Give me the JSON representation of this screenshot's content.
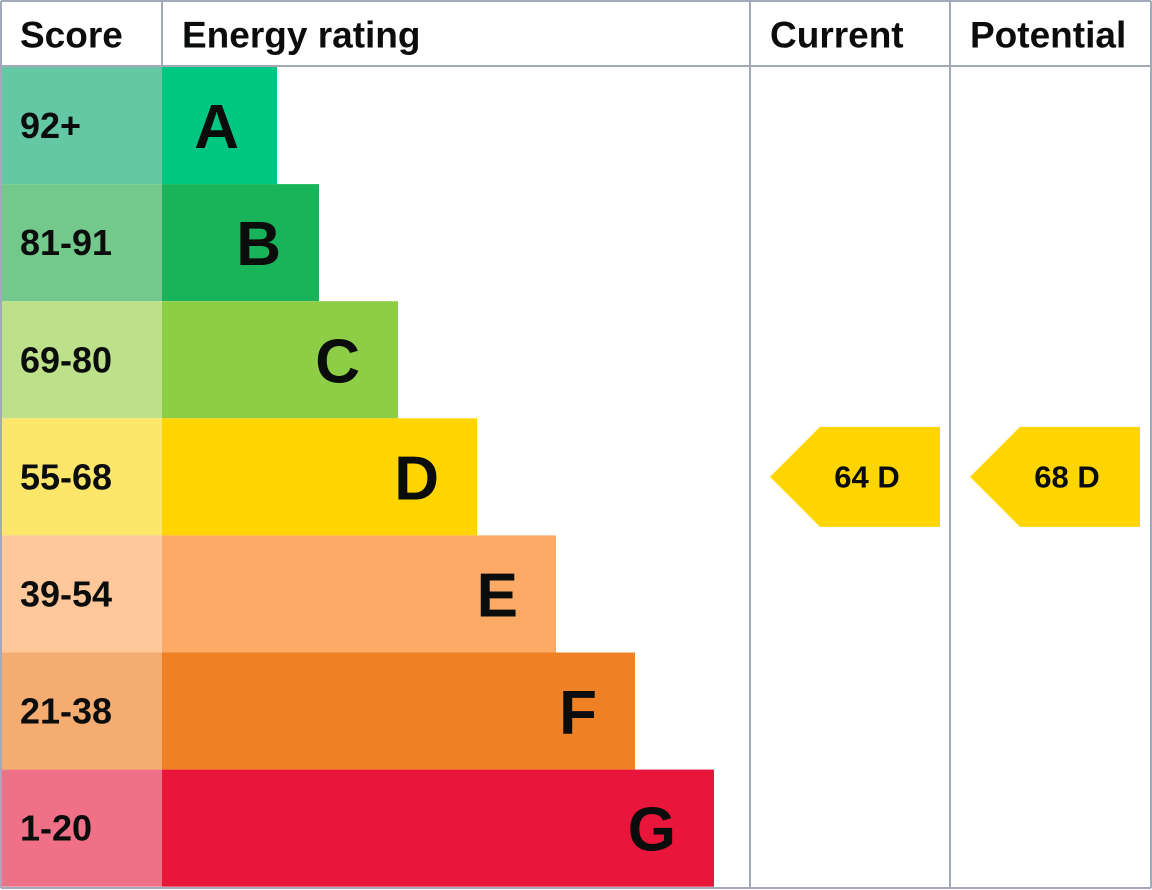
{
  "header": {
    "score": "Score",
    "energy_rating": "Energy rating",
    "current": "Current",
    "potential": "Potential"
  },
  "rows": [
    {
      "score": "92+",
      "rating": "A",
      "color": "#00c781",
      "score_color": "#64c8a5"
    },
    {
      "score": "81-91",
      "rating": "B",
      "color": "#19b459",
      "score_color": "#73c98b"
    },
    {
      "score": "69-80",
      "rating": "C",
      "color": "#8dce46",
      "score_color": "#bde08a"
    },
    {
      "score": "55-68",
      "rating": "D",
      "color": "#ffd500",
      "score_color": "#fde76a"
    },
    {
      "score": "39-54",
      "rating": "E",
      "color": "#fcaa65",
      "score_color": "#fec89b"
    },
    {
      "score": "21-38",
      "rating": "F",
      "color": "#ef8023",
      "score_color": "#f4ac70"
    },
    {
      "score": "1-20",
      "rating": "G",
      "color": "#e9153b",
      "score_color": "#f07088"
    }
  ],
  "current": "64 D",
  "potential": "68 D"
}
